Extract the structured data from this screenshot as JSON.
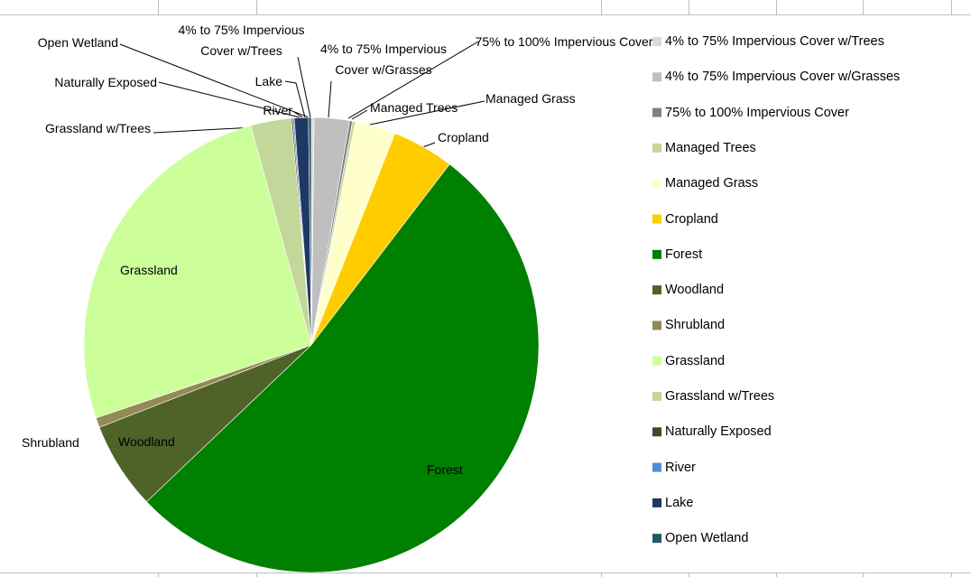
{
  "chart_data": {
    "type": "pie",
    "categories": [
      "4% to 75% Impervious Cover w/Trees",
      "4% to 75% Impervious Cover w/Grasses",
      "75% to 100% Impervious Cover",
      "Managed Trees",
      "Managed Grass",
      "Cropland",
      "Forest",
      "Woodland",
      "Shrubland",
      "Grassland",
      "Grassland w/Trees",
      "Naturally Exposed",
      "River",
      "Lake",
      "Open Wetland"
    ],
    "values": [
      0.2,
      2.5,
      0.2,
      0.2,
      2.9,
      4.4,
      52.5,
      6.2,
      0.7,
      25.9,
      2.9,
      0.1,
      0.1,
      1.0,
      0.2
    ],
    "colors": [
      "#d9d9d9",
      "#bfbfbf",
      "#808080",
      "#c4d79b",
      "#ffffcc",
      "#ffcc00",
      "#008000",
      "#4f6228",
      "#948a54",
      "#ccff99",
      "#c4d79b",
      "#494529",
      "#538dd5",
      "#1f3864",
      "#215868"
    ],
    "legend": "right"
  }
}
